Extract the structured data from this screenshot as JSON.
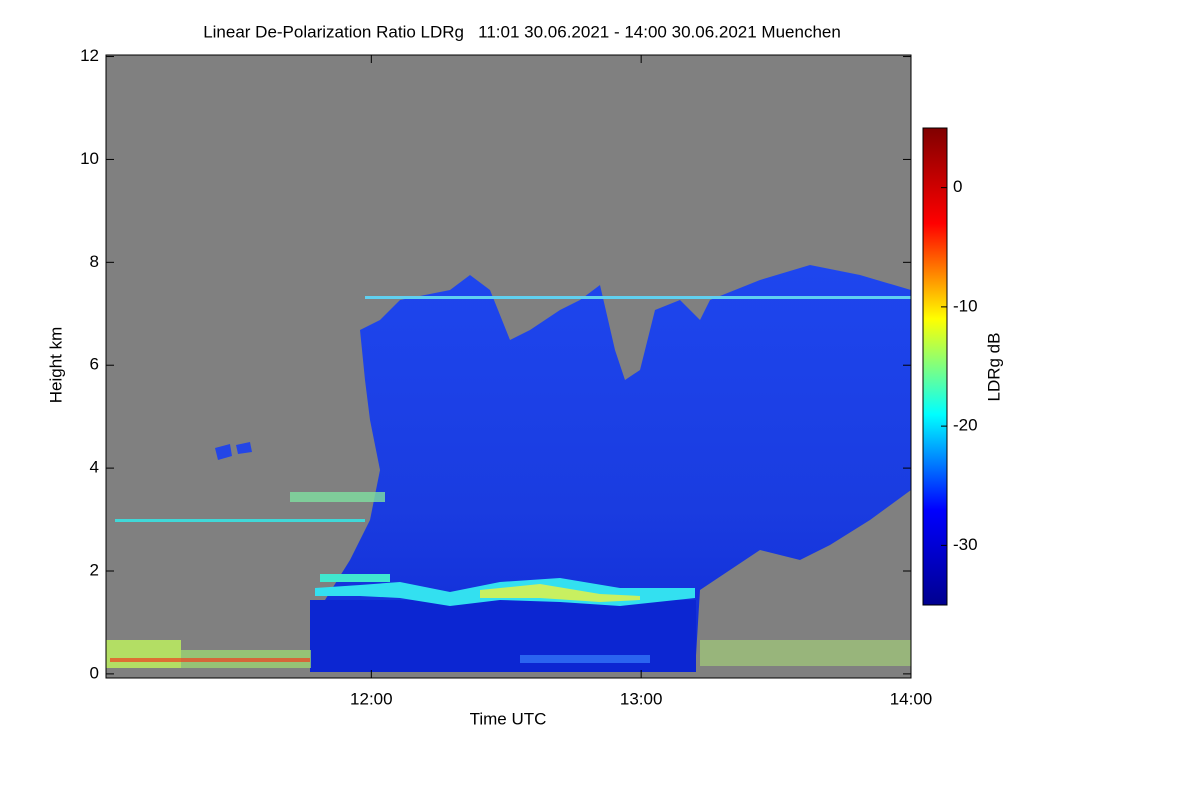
{
  "chart_data": {
    "type": "heatmap",
    "title": "Linear De-Polarization Ratio LDRg   11:01 30.06.2021 - 14:00 30.06.2021 Muenchen",
    "x_label": "Time UTC",
    "y_label": "Height km",
    "xlim": [
      11.0167,
      14.0
    ],
    "xticks": [
      {
        "value": 12,
        "label": "12:00"
      },
      {
        "value": 13,
        "label": "13:00"
      },
      {
        "value": 14,
        "label": "14:00"
      }
    ],
    "ylim": [
      -0.08,
      12.03
    ],
    "yticks": [
      0,
      2,
      4,
      6,
      8,
      10,
      12
    ],
    "colorbar": {
      "label": "LDRg dB",
      "clim": [
        -35,
        5
      ],
      "ticks": [
        0,
        -10,
        -20,
        -30
      ],
      "colormap": "jet",
      "colors": [
        "#00008f",
        "#0000ff",
        "#00ffff",
        "#ffff00",
        "#ff0000",
        "#800000"
      ]
    }
  }
}
